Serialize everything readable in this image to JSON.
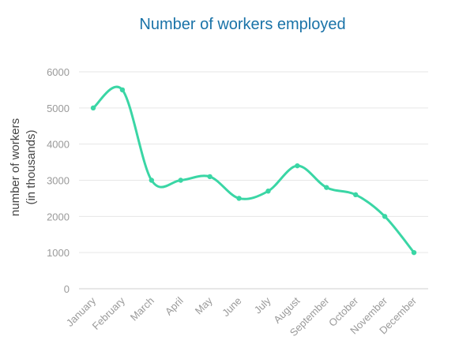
{
  "chart_data": {
    "type": "line",
    "title": "Number of workers employed",
    "ylabel_lines": [
      "number of workers",
      "(in thousands)"
    ],
    "xlabel": "",
    "categories": [
      "January",
      "February",
      "March",
      "April",
      "May",
      "June",
      "July",
      "August",
      "September",
      "October",
      "November",
      "December"
    ],
    "series": [
      {
        "values": [
          5000,
          5500,
          3000,
          3000,
          3100,
          2500,
          2700,
          3400,
          2800,
          2600,
          2000,
          1000
        ]
      }
    ],
    "ylim": [
      0,
      6000
    ],
    "yticks": [
      "0",
      "1000",
      "2000",
      "3000",
      "4000",
      "5000",
      "6000"
    ],
    "grid": true,
    "line_color": "#3ad6a5",
    "title_color": "#1a73a8"
  }
}
